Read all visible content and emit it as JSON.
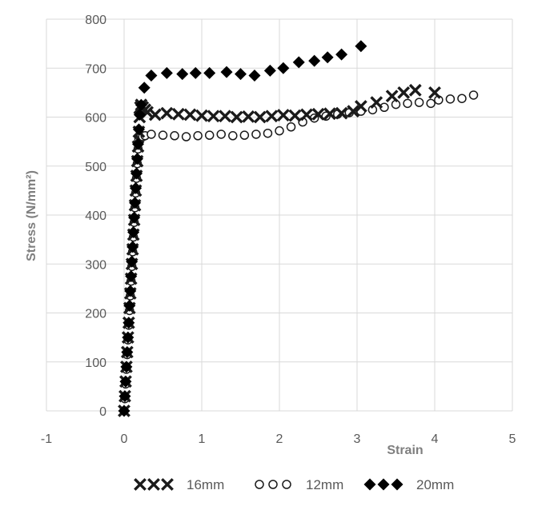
{
  "chart_data": {
    "type": "scatter",
    "title": "",
    "xlabel": "Strain",
    "ylabel": "Stress (N/mm²)",
    "xlim": [
      -1,
      5
    ],
    "ylim": [
      0,
      800
    ],
    "x_ticks": [
      -1,
      0,
      1,
      2,
      3,
      4,
      5
    ],
    "y_ticks": [
      0,
      100,
      200,
      300,
      400,
      500,
      600,
      700,
      800
    ],
    "grid": true,
    "legend_position": "bottom",
    "series": [
      {
        "name": "16mm",
        "marker": "x",
        "color": "#1a1a1a",
        "x": [
          0.0,
          0.01,
          0.02,
          0.03,
          0.04,
          0.05,
          0.06,
          0.07,
          0.08,
          0.09,
          0.1,
          0.11,
          0.12,
          0.13,
          0.14,
          0.15,
          0.16,
          0.17,
          0.18,
          0.19,
          0.2,
          0.21,
          0.22,
          0.24,
          0.27,
          0.3,
          0.4,
          0.55,
          0.7,
          0.85,
          1.0,
          1.15,
          1.3,
          1.45,
          1.6,
          1.75,
          1.9,
          2.05,
          2.2,
          2.35,
          2.5,
          2.65,
          2.8,
          2.95,
          3.05,
          3.25,
          3.45,
          3.6,
          3.75,
          4.0
        ],
        "y": [
          0,
          30,
          60,
          90,
          120,
          150,
          180,
          210,
          240,
          270,
          300,
          330,
          360,
          390,
          420,
          450,
          480,
          510,
          540,
          570,
          600,
          620,
          625,
          620,
          615,
          610,
          605,
          608,
          606,
          605,
          603,
          602,
          602,
          600,
          601,
          600,
          602,
          604,
          603,
          605,
          606,
          607,
          608,
          612,
          622,
          630,
          643,
          650,
          655,
          650
        ]
      },
      {
        "name": "12mm",
        "marker": "o",
        "color": "#1a1a1a",
        "x": [
          0.0,
          0.01,
          0.02,
          0.03,
          0.04,
          0.05,
          0.06,
          0.07,
          0.08,
          0.09,
          0.1,
          0.11,
          0.12,
          0.13,
          0.14,
          0.15,
          0.16,
          0.17,
          0.18,
          0.19,
          0.2,
          0.21,
          0.22,
          0.24,
          0.27,
          0.35,
          0.5,
          0.65,
          0.8,
          0.95,
          1.1,
          1.25,
          1.4,
          1.55,
          1.7,
          1.85,
          2.0,
          2.15,
          2.3,
          2.45,
          2.6,
          2.75,
          2.9,
          3.05,
          3.2,
          3.35,
          3.5,
          3.65,
          3.8,
          3.95,
          4.05,
          4.2,
          4.35,
          4.5
        ],
        "y": [
          0,
          25,
          55,
          85,
          115,
          145,
          175,
          205,
          235,
          265,
          295,
          325,
          355,
          385,
          415,
          445,
          475,
          505,
          535,
          555,
          560,
          562,
          563,
          560,
          562,
          565,
          563,
          562,
          560,
          562,
          563,
          565,
          562,
          563,
          565,
          567,
          572,
          580,
          590,
          598,
          602,
          606,
          609,
          612,
          615,
          620,
          626,
          628,
          630,
          628,
          635,
          637,
          638,
          645
        ]
      },
      {
        "name": "20mm",
        "marker": "diamond",
        "color": "#000000",
        "x": [
          0.0,
          0.01,
          0.02,
          0.03,
          0.04,
          0.05,
          0.06,
          0.07,
          0.08,
          0.09,
          0.1,
          0.11,
          0.12,
          0.13,
          0.14,
          0.15,
          0.16,
          0.17,
          0.18,
          0.19,
          0.2,
          0.22,
          0.26,
          0.35,
          0.55,
          0.75,
          0.92,
          1.1,
          1.32,
          1.5,
          1.68,
          1.88,
          2.05,
          2.25,
          2.45,
          2.62,
          2.8,
          3.05
        ],
        "y": [
          0,
          30,
          60,
          90,
          120,
          150,
          180,
          215,
          245,
          275,
          305,
          335,
          365,
          395,
          425,
          455,
          485,
          515,
          545,
          575,
          605,
          625,
          660,
          685,
          690,
          688,
          690,
          690,
          692,
          688,
          685,
          695,
          700,
          712,
          715,
          722,
          728,
          745
        ]
      }
    ]
  }
}
